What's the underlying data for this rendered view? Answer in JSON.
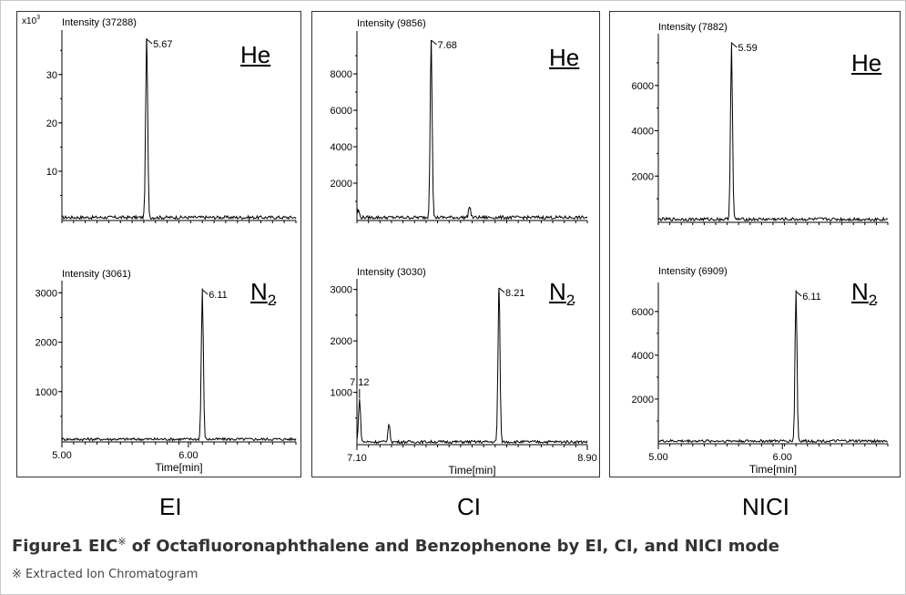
{
  "figure": {
    "caption_prefix": "Figure1 EIC",
    "caption_mark": "※",
    "caption_rest": " of Octafluoronaphthalene and Benzophenone by EI, CI, and NICI mode",
    "footnote": "※ Extracted Ion Chromatogram",
    "modes": [
      "EI",
      "CI",
      "NICI"
    ]
  },
  "chart_data": [
    {
      "type": "line",
      "mode": "EI",
      "gas": "He",
      "title": "Intensity (37288)",
      "y_multiplier": "x10",
      "y_multiplier_exp": "3",
      "yticks": [
        10,
        20,
        30
      ],
      "ytick_labels": [
        "10",
        "20",
        "30"
      ],
      "ylim": [
        0,
        37.3
      ],
      "xlim": [
        5.0,
        6.85
      ],
      "xticks": [],
      "peaks": [
        {
          "x": 5.67,
          "y": 37.3,
          "label": "5.67"
        }
      ],
      "minor_peaks": []
    },
    {
      "type": "line",
      "mode": "EI",
      "gas": "N",
      "gas_sub": "2",
      "title": "Intensity (3061)",
      "yticks": [
        1000,
        2000,
        3000
      ],
      "ytick_labels": [
        "1000",
        "2000",
        "3000"
      ],
      "ylim": [
        0,
        3061
      ],
      "xlim": [
        5.0,
        6.85
      ],
      "xticks": [
        5.0,
        6.0
      ],
      "xtick_labels": [
        "5.00",
        "6.00"
      ],
      "xlabel": "Time[min]",
      "peaks": [
        {
          "x": 6.11,
          "y": 3061,
          "label": "6.11"
        }
      ],
      "minor_peaks": []
    },
    {
      "type": "line",
      "mode": "CI",
      "gas": "He",
      "title": "Intensity (9856)",
      "yticks": [
        2000,
        4000,
        6000,
        8000
      ],
      "ytick_labels": [
        "2000",
        "4000",
        "6000",
        "8000"
      ],
      "ylim": [
        0,
        9856
      ],
      "xlim": [
        7.1,
        8.9
      ],
      "xticks": [],
      "peaks": [
        {
          "x": 7.68,
          "y": 9856,
          "label": "7.68"
        }
      ],
      "minor_peaks": [
        {
          "x": 7.11,
          "y": 450
        },
        {
          "x": 7.98,
          "y": 650
        }
      ]
    },
    {
      "type": "line",
      "mode": "CI",
      "gas": "N",
      "gas_sub": "2",
      "title": "Intensity (3030)",
      "yticks": [
        1000,
        2000,
        3000
      ],
      "ytick_labels": [
        "1000",
        "2000",
        "3000"
      ],
      "ylim": [
        0,
        3030
      ],
      "xlim": [
        7.1,
        8.9
      ],
      "xticks": [
        7.1,
        8.9
      ],
      "xtick_labels": [
        "7.10",
        "8.90"
      ],
      "xlabel": "Time[min]",
      "peaks": [
        {
          "x": 8.21,
          "y": 3030,
          "label": "8.21"
        },
        {
          "x": 7.12,
          "y": 850,
          "label": "7.12"
        }
      ],
      "minor_peaks": [
        {
          "x": 7.35,
          "y": 360
        }
      ]
    },
    {
      "type": "line",
      "mode": "NICI",
      "gas": "He",
      "title": "Intensity (7882)",
      "yticks": [
        2000,
        4000,
        6000
      ],
      "ytick_labels": [
        "2000",
        "4000",
        "6000"
      ],
      "ylim": [
        0,
        7882
      ],
      "xlim": [
        5.0,
        6.85
      ],
      "xticks": [],
      "peaks": [
        {
          "x": 5.59,
          "y": 7882,
          "label": "5.59"
        }
      ],
      "minor_peaks": []
    },
    {
      "type": "line",
      "mode": "NICI",
      "gas": "N",
      "gas_sub": "2",
      "title": "Intensity (6909)",
      "yticks": [
        2000,
        4000,
        6000
      ],
      "ytick_labels": [
        "2000",
        "4000",
        "6000"
      ],
      "ylim": [
        0,
        6909
      ],
      "xlim": [
        5.0,
        6.85
      ],
      "xticks": [
        5.0,
        6.0
      ],
      "xtick_labels": [
        "5.00",
        "6.00"
      ],
      "xlabel": "Time[min]",
      "peaks": [
        {
          "x": 6.11,
          "y": 6909,
          "label": "6.11"
        }
      ],
      "minor_peaks": []
    }
  ]
}
